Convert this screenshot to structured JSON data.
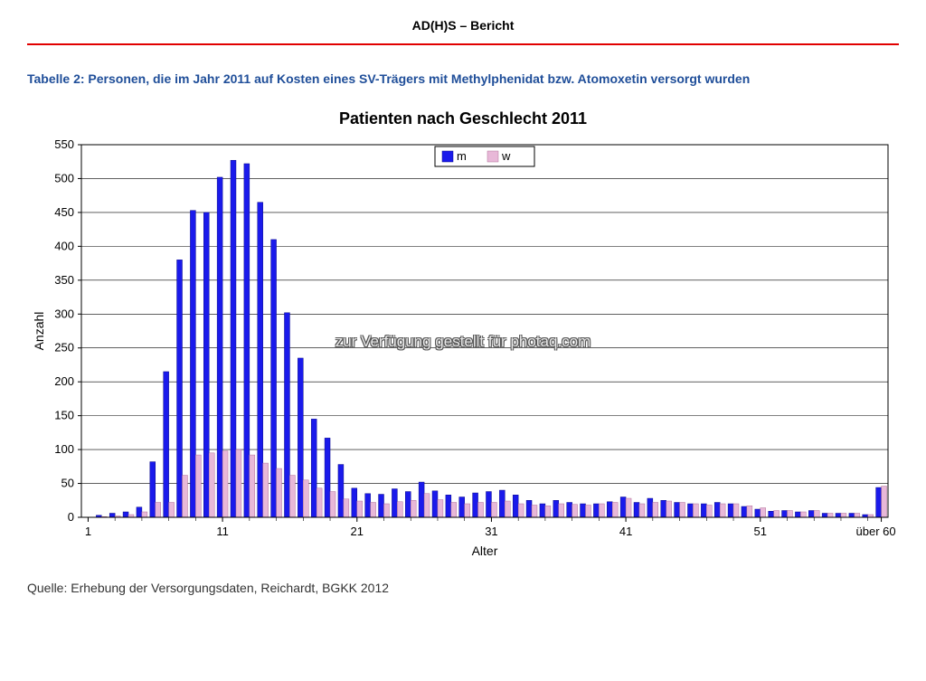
{
  "doc_title": "AD(H)S – Bericht",
  "table_caption": "Tabelle 2: Personen, die im Jahr 2011 auf Kosten eines SV-Trägers mit Methylphenidat bzw. Atomoxetin versorgt wurden",
  "chart": {
    "type": "bar-grouped",
    "title": "Patienten nach Geschlecht 2011",
    "xlabel": "Alter",
    "ylabel": "Anzahl",
    "xlim": [
      1,
      60
    ],
    "ylim": [
      0,
      550
    ],
    "ytick_step": 50,
    "x_ticks": [
      1,
      11,
      21,
      31,
      41,
      51
    ],
    "x_last_label": "über 60",
    "background_color": "#ffffff",
    "grid_color": "#000000",
    "grid_width": 0.6,
    "axis_color": "#000000",
    "label_fontsize": 14,
    "tick_fontsize": 13,
    "legend": {
      "labels": [
        "m",
        "w"
      ],
      "colors": [
        "#1a1aeb",
        "#e8b8d8"
      ],
      "border_color": "#000000",
      "fontsize": 13
    },
    "series": [
      {
        "name": "m",
        "color": "#1a1aeb",
        "border_color": "#0a0a8a",
        "values": [
          0,
          3,
          6,
          8,
          15,
          82,
          215,
          380,
          453,
          450,
          502,
          527,
          522,
          465,
          410,
          302,
          235,
          145,
          117,
          78,
          43,
          35,
          34,
          42,
          38,
          52,
          39,
          33,
          30,
          36,
          38,
          40,
          33,
          25,
          20,
          25,
          22,
          20,
          20,
          23,
          30,
          22,
          28,
          25,
          22,
          20,
          20,
          22,
          20,
          16,
          12,
          9,
          10,
          8,
          10,
          6,
          6,
          6,
          4,
          44
        ]
      },
      {
        "name": "w",
        "color": "#e8b8d8",
        "border_color": "#b07098",
        "values": [
          0,
          1,
          2,
          4,
          8,
          22,
          22,
          62,
          92,
          95,
          98,
          100,
          92,
          80,
          72,
          62,
          55,
          43,
          38,
          27,
          24,
          22,
          20,
          23,
          25,
          35,
          26,
          22,
          20,
          22,
          22,
          24,
          20,
          18,
          17,
          20,
          19,
          18,
          20,
          22,
          28,
          20,
          22,
          24,
          22,
          20,
          18,
          20,
          20,
          17,
          14,
          10,
          10,
          8,
          10,
          6,
          6,
          6,
          4,
          46
        ]
      }
    ],
    "bar_group_slots": 60,
    "bar_width_ratio": 0.4
  },
  "watermark": "zur Verfügung gestellt für photaq.com",
  "source": "Quelle: Erhebung der Versorgungsdaten, Reichardt,  BGKK 2012"
}
